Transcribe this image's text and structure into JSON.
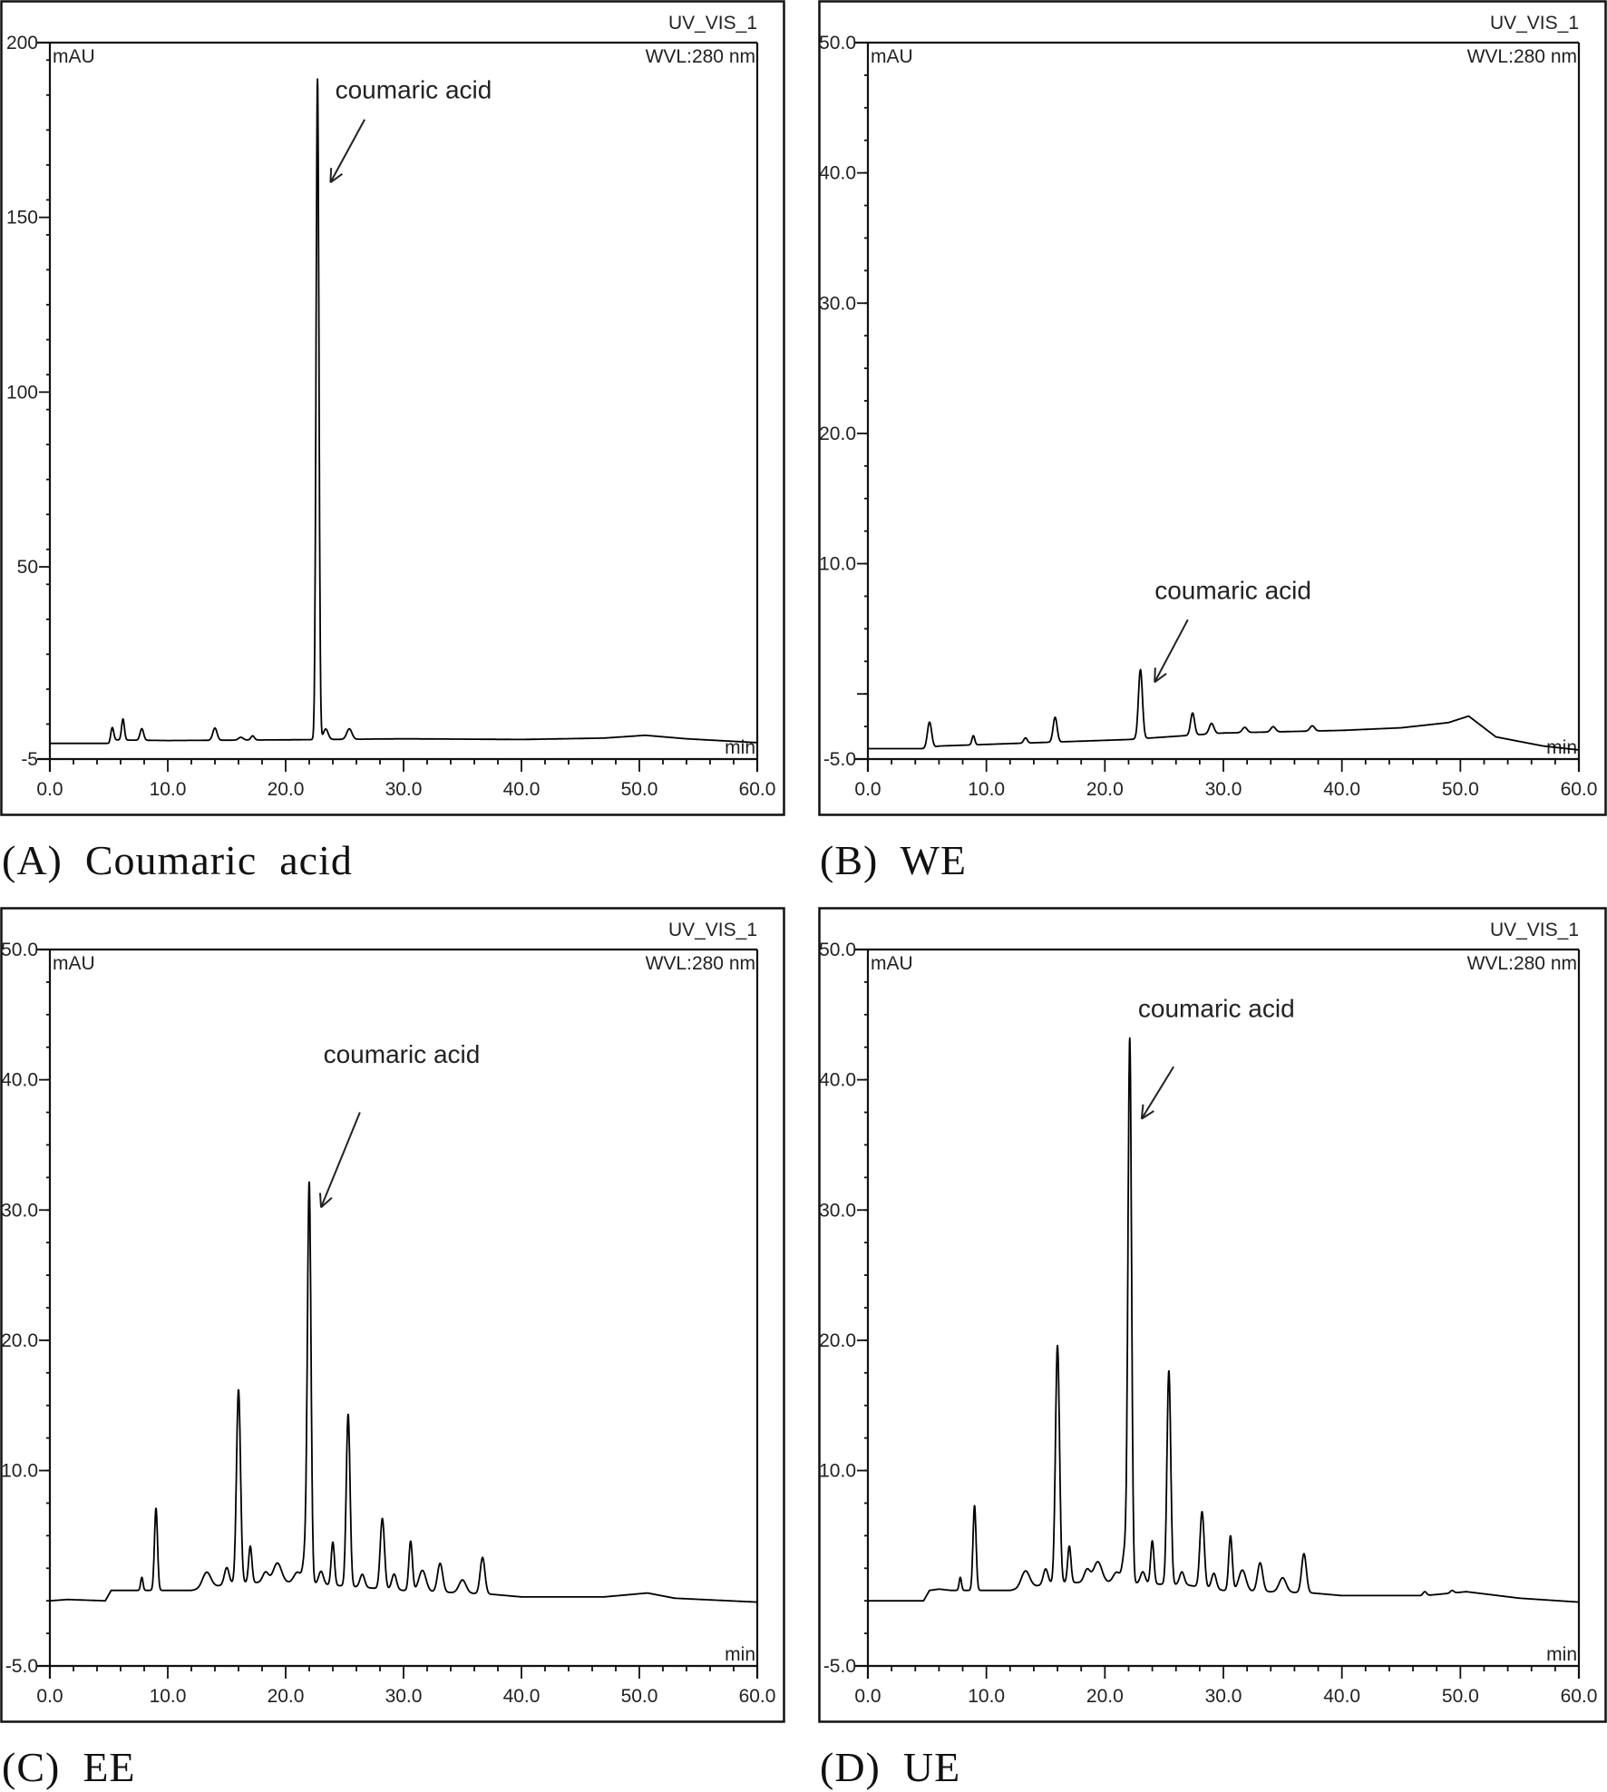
{
  "figure": {
    "panels": [
      {
        "id": "A",
        "caption": "(A)  Coumaric  acid",
        "channel": "UV_VIS_1",
        "wavelength": "WVL:280 nm",
        "y_unit": "mAU",
        "x_unit": "min",
        "annotation": "coumaric acid"
      },
      {
        "id": "B",
        "caption": "(B)  WE",
        "channel": "UV_VIS_1",
        "wavelength": "WVL:280 nm",
        "y_unit": "mAU",
        "x_unit": "min",
        "annotation": "coumaric acid"
      },
      {
        "id": "C",
        "caption": "(C)  EE",
        "channel": "UV_VIS_1",
        "wavelength": "WVL:280 nm",
        "y_unit": "mAU",
        "x_unit": "min",
        "annotation": "coumaric acid"
      },
      {
        "id": "D",
        "caption": "(D)  UE",
        "channel": "UV_VIS_1",
        "wavelength": "WVL:280 nm",
        "y_unit": "mAU",
        "x_unit": "min",
        "annotation": "coumaric acid"
      }
    ]
  },
  "chart_data": [
    {
      "type": "line",
      "panel": "A",
      "title": "(A) Coumaric acid",
      "xlabel": "min",
      "ylabel": "mAU",
      "header": [
        "UV_VIS_1",
        "WVL:280 nm"
      ],
      "xlim": [
        0,
        60
      ],
      "ylim": [
        -5,
        200
      ],
      "x_ticks": [
        "0.0",
        "10.0",
        "20.0",
        "30.0",
        "40.0",
        "50.0",
        "60.0"
      ],
      "y_ticks": [
        {
          "v": -5,
          "label": "-5"
        },
        {
          "v": 50,
          "label": "50"
        },
        {
          "v": 100,
          "label": "100"
        },
        {
          "v": 150,
          "label": "150"
        },
        {
          "v": 200,
          "label": "200"
        }
      ],
      "y_minor_step": 10,
      "baseline": [
        [
          0,
          -0.5
        ],
        [
          5,
          -0.5
        ],
        [
          5.2,
          0.5
        ],
        [
          10,
          0.3
        ],
        [
          20,
          0.5
        ],
        [
          30,
          0.8
        ],
        [
          40,
          0.6
        ],
        [
          47,
          1.0
        ],
        [
          50.5,
          1.8
        ],
        [
          54,
          0.8
        ],
        [
          60,
          -0.3
        ]
      ],
      "peaks": [
        {
          "rt": 5.3,
          "height": 3.5,
          "width": 0.12
        },
        {
          "rt": 6.2,
          "height": 6.0,
          "width": 0.12
        },
        {
          "rt": 7.8,
          "height": 3.3,
          "width": 0.15
        },
        {
          "rt": 14.0,
          "height": 3.5,
          "width": 0.18
        },
        {
          "rt": 16.2,
          "height": 0.8,
          "width": 0.2
        },
        {
          "rt": 17.2,
          "height": 1.2,
          "width": 0.15
        },
        {
          "rt": 22.7,
          "height": 189,
          "width": 0.12
        },
        {
          "rt": 23.4,
          "height": 3.0,
          "width": 0.2
        },
        {
          "rt": 25.4,
          "height": 3.0,
          "width": 0.22
        }
      ],
      "annotated_peak": {
        "label": "coumaric acid",
        "rt": 22.7,
        "height_mAU": 190
      },
      "arrow": {
        "from": [
          26.7,
          178
        ],
        "to": [
          23.8,
          160
        ]
      },
      "label_pos": [
        24.2,
        184
      ]
    },
    {
      "type": "line",
      "panel": "B",
      "title": "(B) WE",
      "xlabel": "min",
      "ylabel": "mAU",
      "header": [
        "UV_VIS_1",
        "WVL:280 nm"
      ],
      "xlim": [
        0,
        60
      ],
      "ylim": [
        -5,
        50
      ],
      "x_ticks": [
        "0.0",
        "10.0",
        "20.0",
        "30.0",
        "40.0",
        "50.0",
        "60.0"
      ],
      "y_ticks": [
        {
          "v": -5,
          "label": "-5.0"
        },
        {
          "v": 0,
          "label": ""
        },
        {
          "v": 10,
          "label": "10.0"
        },
        {
          "v": 20,
          "label": "20.0"
        },
        {
          "v": 30,
          "label": "30.0"
        },
        {
          "v": 40,
          "label": "40.0"
        },
        {
          "v": 50,
          "label": "50.0"
        }
      ],
      "y_minor_step": 2.5,
      "baseline": [
        [
          0,
          -4.2
        ],
        [
          5,
          -4.2
        ],
        [
          6,
          -4.0
        ],
        [
          22,
          -3.5
        ],
        [
          30,
          -3.0
        ],
        [
          40,
          -2.8
        ],
        [
          45,
          -2.6
        ],
        [
          49,
          -2.2
        ],
        [
          50.7,
          -1.7
        ],
        [
          53,
          -3.3
        ],
        [
          57,
          -4.0
        ],
        [
          60,
          -4.3
        ]
      ],
      "peaks": [
        {
          "rt": 5.2,
          "height": 2.0,
          "width": 0.18
        },
        {
          "rt": 8.9,
          "height": 0.7,
          "width": 0.12
        },
        {
          "rt": 13.3,
          "height": 0.4,
          "width": 0.15
        },
        {
          "rt": 15.8,
          "height": 1.9,
          "width": 0.17
        },
        {
          "rt": 23.0,
          "height": 5.3,
          "width": 0.17
        },
        {
          "rt": 27.4,
          "height": 1.7,
          "width": 0.17
        },
        {
          "rt": 29.0,
          "height": 0.8,
          "width": 0.2
        },
        {
          "rt": 31.8,
          "height": 0.4,
          "width": 0.2
        },
        {
          "rt": 34.2,
          "height": 0.4,
          "width": 0.2
        },
        {
          "rt": 37.5,
          "height": 0.4,
          "width": 0.2
        }
      ],
      "annotated_peak": {
        "label": "coumaric acid",
        "rt": 23.0,
        "height_mAU": 1.8
      },
      "arrow": {
        "from": [
          27.0,
          5.7
        ],
        "to": [
          24.2,
          0.9
        ]
      },
      "label_pos": [
        24.2,
        7.3
      ]
    },
    {
      "type": "line",
      "panel": "C",
      "title": "(C) EE",
      "xlabel": "min",
      "ylabel": "mAU",
      "header": [
        "UV_VIS_1",
        "WVL:280 nm"
      ],
      "xlim": [
        0,
        60
      ],
      "ylim": [
        -5,
        50
      ],
      "x_ticks": [
        "0.0",
        "10.0",
        "20.0",
        "30.0",
        "40.0",
        "50.0",
        "60.0"
      ],
      "y_ticks": [
        {
          "v": -5,
          "label": "-5.0"
        },
        {
          "v": 10,
          "label": "10.0"
        },
        {
          "v": 20,
          "label": "20.0"
        },
        {
          "v": 30,
          "label": "30.0"
        },
        {
          "v": 40,
          "label": "40.0"
        },
        {
          "v": 50,
          "label": "50.0"
        }
      ],
      "y_minor_step": 2.5,
      "baseline": [
        [
          0,
          0
        ],
        [
          1.5,
          0.1
        ],
        [
          4.7,
          0
        ],
        [
          5.2,
          0.8
        ],
        [
          12,
          0.8
        ],
        [
          16,
          1.4
        ],
        [
          21,
          1.4
        ],
        [
          27,
          1.0
        ],
        [
          30,
          0.8
        ],
        [
          37.5,
          0.5
        ],
        [
          40,
          0.3
        ],
        [
          47,
          0.3
        ],
        [
          50.7,
          0.6
        ],
        [
          53,
          0.2
        ],
        [
          60,
          -0.1
        ]
      ],
      "peaks": [
        {
          "rt": 7.8,
          "height": 1.0,
          "width": 0.1
        },
        {
          "rt": 9.0,
          "height": 6.3,
          "width": 0.13
        },
        {
          "rt": 13.3,
          "height": 1.2,
          "width": 0.35
        },
        {
          "rt": 15.0,
          "height": 1.3,
          "width": 0.2
        },
        {
          "rt": 16.0,
          "height": 14.8,
          "width": 0.17
        },
        {
          "rt": 17.0,
          "height": 2.8,
          "width": 0.14
        },
        {
          "rt": 18.3,
          "height": 0.8,
          "width": 0.25
        },
        {
          "rt": 19.3,
          "height": 1.5,
          "width": 0.35
        },
        {
          "rt": 21.0,
          "height": 0.8,
          "width": 0.3
        },
        {
          "rt": 21.7,
          "height": 2.5,
          "width": 0.2
        },
        {
          "rt": 22.0,
          "height": 30.0,
          "width": 0.15
        },
        {
          "rt": 23.0,
          "height": 1.0,
          "width": 0.2
        },
        {
          "rt": 24.0,
          "height": 3.3,
          "width": 0.14
        },
        {
          "rt": 25.3,
          "height": 13.2,
          "width": 0.16
        },
        {
          "rt": 26.5,
          "height": 1.0,
          "width": 0.2
        },
        {
          "rt": 28.2,
          "height": 5.4,
          "width": 0.18
        },
        {
          "rt": 29.2,
          "height": 1.2,
          "width": 0.2
        },
        {
          "rt": 30.6,
          "height": 3.8,
          "width": 0.15
        },
        {
          "rt": 31.6,
          "height": 1.6,
          "width": 0.3
        },
        {
          "rt": 33.1,
          "height": 2.2,
          "width": 0.22
        },
        {
          "rt": 35.0,
          "height": 1.0,
          "width": 0.3
        },
        {
          "rt": 36.7,
          "height": 2.8,
          "width": 0.2
        }
      ],
      "annotated_peak": {
        "label": "coumaric acid",
        "rt": 22.0,
        "height_mAU": 31.8
      },
      "arrow": {
        "from": [
          26.3,
          37.5
        ],
        "to": [
          23.0,
          30.2
        ]
      },
      "label_pos": [
        23.2,
        41.3
      ]
    },
    {
      "type": "line",
      "panel": "D",
      "title": "(D) UE",
      "xlabel": "min",
      "ylabel": "mAU",
      "header": [
        "UV_VIS_1",
        "WVL:280 nm"
      ],
      "xlim": [
        0,
        60
      ],
      "ylim": [
        -5,
        50
      ],
      "x_ticks": [
        "0.0",
        "10.0",
        "20.0",
        "30.0",
        "40.0",
        "50.0",
        "60.0"
      ],
      "y_ticks": [
        {
          "v": -5,
          "label": "-5.0"
        },
        {
          "v": 10,
          "label": "10.0"
        },
        {
          "v": 20,
          "label": "20.0"
        },
        {
          "v": 30,
          "label": "30.0"
        },
        {
          "v": 40,
          "label": "40.0"
        },
        {
          "v": 50,
          "label": "50.0"
        }
      ],
      "y_minor_step": 2.5,
      "baseline": [
        [
          0,
          0
        ],
        [
          4.7,
          0
        ],
        [
          5.2,
          0.8
        ],
        [
          6,
          0.9
        ],
        [
          7,
          0.8
        ],
        [
          12,
          0.8
        ],
        [
          16,
          1.4
        ],
        [
          21,
          1.4
        ],
        [
          27,
          1.2
        ],
        [
          30,
          0.8
        ],
        [
          37.5,
          0.6
        ],
        [
          40,
          0.4
        ],
        [
          47,
          0.4
        ],
        [
          50.5,
          0.7
        ],
        [
          55,
          0.2
        ],
        [
          60,
          -0.1
        ]
      ],
      "peaks": [
        {
          "rt": 7.8,
          "height": 1.0,
          "width": 0.1
        },
        {
          "rt": 9.0,
          "height": 6.5,
          "width": 0.13
        },
        {
          "rt": 13.3,
          "height": 1.3,
          "width": 0.35
        },
        {
          "rt": 15.0,
          "height": 1.2,
          "width": 0.2
        },
        {
          "rt": 16.0,
          "height": 18.2,
          "width": 0.17
        },
        {
          "rt": 17.0,
          "height": 2.8,
          "width": 0.14
        },
        {
          "rt": 18.5,
          "height": 1.0,
          "width": 0.25
        },
        {
          "rt": 19.4,
          "height": 1.6,
          "width": 0.35
        },
        {
          "rt": 21.0,
          "height": 0.8,
          "width": 0.3
        },
        {
          "rt": 21.7,
          "height": 2.5,
          "width": 0.2
        },
        {
          "rt": 22.1,
          "height": 41.5,
          "width": 0.15
        },
        {
          "rt": 23.2,
          "height": 0.9,
          "width": 0.2
        },
        {
          "rt": 24.0,
          "height": 3.3,
          "width": 0.14
        },
        {
          "rt": 25.4,
          "height": 16.4,
          "width": 0.16
        },
        {
          "rt": 26.5,
          "height": 1.0,
          "width": 0.2
        },
        {
          "rt": 28.2,
          "height": 5.8,
          "width": 0.18
        },
        {
          "rt": 29.2,
          "height": 1.2,
          "width": 0.2
        },
        {
          "rt": 30.6,
          "height": 4.2,
          "width": 0.15
        },
        {
          "rt": 31.6,
          "height": 1.6,
          "width": 0.3
        },
        {
          "rt": 33.1,
          "height": 2.2,
          "width": 0.22
        },
        {
          "rt": 35.0,
          "height": 1.1,
          "width": 0.3
        },
        {
          "rt": 36.8,
          "height": 3.0,
          "width": 0.2
        },
        {
          "rt": 47.0,
          "height": 0.3,
          "width": 0.15
        },
        {
          "rt": 49.3,
          "height": 0.2,
          "width": 0.15
        }
      ],
      "annotated_peak": {
        "label": "coumaric acid",
        "rt": 22.1,
        "height_mAU": 42.8
      },
      "arrow": {
        "from": [
          25.8,
          41.0
        ],
        "to": [
          23.1,
          37.0
        ]
      },
      "label_pos": [
        22.8,
        44.8
      ]
    }
  ]
}
